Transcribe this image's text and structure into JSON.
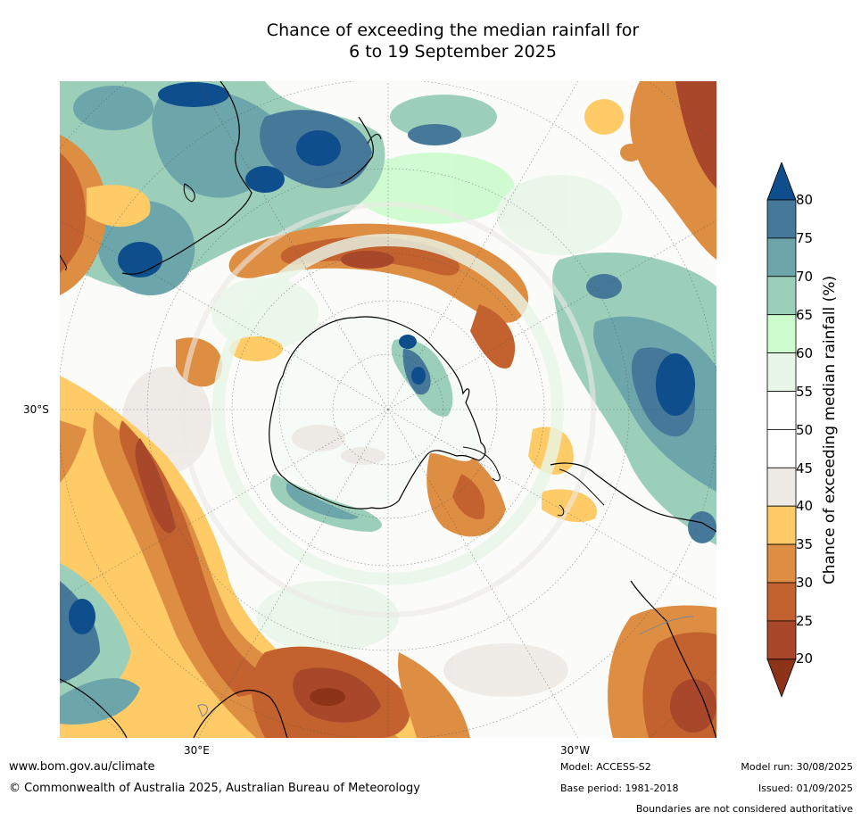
{
  "title": {
    "line1": "Chance of exceeding the median rainfall for",
    "line2": "6 to 19 September 2025"
  },
  "map": {
    "lat_label": "30°S",
    "lon_labels": [
      "30°E",
      "30°W"
    ],
    "colors": {
      "c20": "#8c3318",
      "c25": "#a9472a",
      "c30": "#c4622f",
      "c35": "#de8e42",
      "c40": "#fecb66",
      "c45": "#edeae5",
      "c50": "#ffffff",
      "c55": "#ffffff",
      "c60": "#e8f6e8",
      "c65": "#ccfccd",
      "c70": "#9ccfba",
      "c75": "#6ca5aa",
      "c80": "#457899",
      "c85": "#0f4e8c"
    }
  },
  "colorbar": {
    "label": "Chance of exceeding median rainfall (%)",
    "ticks": [
      "80",
      "75",
      "70",
      "65",
      "60",
      "55",
      "50",
      "45",
      "40",
      "35",
      "30",
      "25",
      "20"
    ],
    "colors_top_to_bottom": [
      "#0f4e8c",
      "#457899",
      "#6ca5aa",
      "#9ccfba",
      "#ccfccd",
      "#e8f6e8",
      "#ffffff",
      "#ffffff",
      "#edeae5",
      "#fecb66",
      "#de8e42",
      "#c4622f",
      "#a9472a",
      "#8c3318"
    ]
  },
  "footer": {
    "url": "www.bom.gov.au/climate",
    "copyright": "© Commonwealth of Australia 2025, Australian Bureau of Meteorology",
    "model": "Model: ACCESS-S2",
    "base_period": "Base period: 1981-2018",
    "model_run": "Model run: 30/08/2025",
    "issued": "Issued: 01/09/2025",
    "disclaimer": "Boundaries are not considered authoritative"
  }
}
